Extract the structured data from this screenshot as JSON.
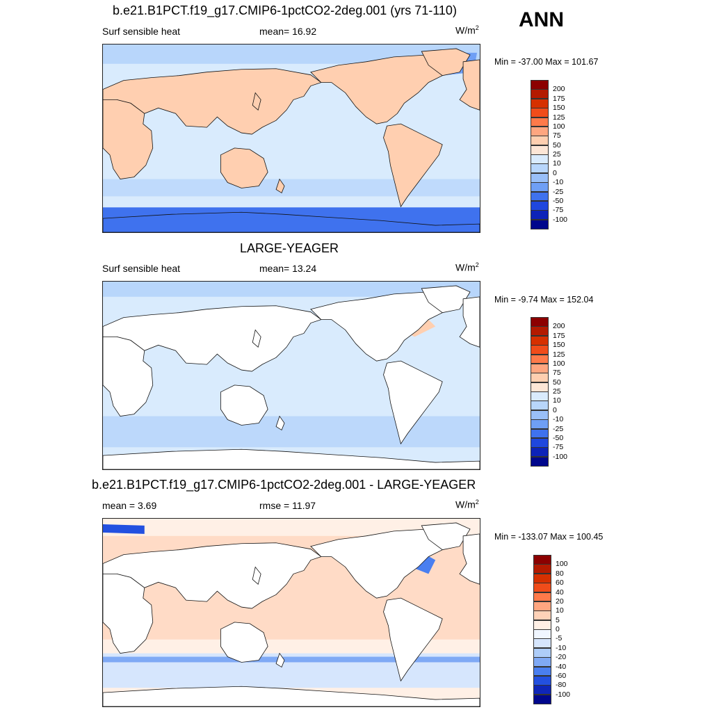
{
  "season": "ANN",
  "panels": [
    {
      "title": "b.e21.B1PCT.f19_g17.CMIP6-1pctCO2-2deg.001 (yrs 71-110)",
      "left_label": "Surf sensible heat",
      "mid_label": "mean=  16.92",
      "units": "W/m",
      "units_sup": "2",
      "minmax": "Min = -37.00 Max = 101.67",
      "colorbar": {
        "labels": [
          "200",
          "175",
          "150",
          "125",
          "100",
          "75",
          "50",
          "25",
          "10",
          "0",
          "-10",
          "-25",
          "-50",
          "-75",
          "-100"
        ],
        "colors": [
          "#8c0000",
          "#b31a00",
          "#d63000",
          "#f04c1a",
          "#ff7a4a",
          "#ffa680",
          "#ffcfb0",
          "#fde6d6",
          "#d9ebfd",
          "#b8d6fb",
          "#99bff8",
          "#6f9ff5",
          "#3f72ee",
          "#1f47de",
          "#0d23b8",
          "#00078c"
        ]
      },
      "field": "mean"
    },
    {
      "title": "LARGE-YEAGER",
      "left_label": "Surf sensible heat",
      "mid_label": "mean=  13.24",
      "units": "W/m",
      "units_sup": "2",
      "minmax": "Min =  -9.74 Max = 152.04",
      "colorbar": {
        "labels": [
          "200",
          "175",
          "150",
          "125",
          "100",
          "75",
          "50",
          "25",
          "10",
          "0",
          "-10",
          "-25",
          "-50",
          "-75",
          "-100"
        ],
        "colors": [
          "#8c0000",
          "#b31a00",
          "#d63000",
          "#f04c1a",
          "#ff7a4a",
          "#ffa680",
          "#ffcfb0",
          "#fde6d6",
          "#d9ebfd",
          "#b8d6fb",
          "#99bff8",
          "#6f9ff5",
          "#3f72ee",
          "#1f47de",
          "#0d23b8",
          "#00078c"
        ]
      },
      "field": "obs"
    },
    {
      "title": "b.e21.B1PCT.f19_g17.CMIP6-1pctCO2-2deg.001 - LARGE-YEAGER",
      "left_label": "mean =   3.69",
      "mid_label": "rmse =  11.97",
      "units": "W/m",
      "units_sup": "2",
      "minmax": "Min = -133.07 Max = 100.45",
      "colorbar": {
        "labels": [
          "100",
          "80",
          "60",
          "40",
          "20",
          "10",
          "5",
          "0",
          "-5",
          "-10",
          "-20",
          "-40",
          "-60",
          "-80",
          "-100"
        ],
        "colors": [
          "#8c0000",
          "#b31a00",
          "#d63000",
          "#f04c1a",
          "#ff7a4a",
          "#ffa680",
          "#ffd2b8",
          "#fff0e6",
          "#f0f6ff",
          "#d6e6fd",
          "#aecdf9",
          "#7fa9f5",
          "#4a7ff0",
          "#2350e0",
          "#0f26b8",
          "#00078c"
        ]
      },
      "field": "diff"
    }
  ]
}
